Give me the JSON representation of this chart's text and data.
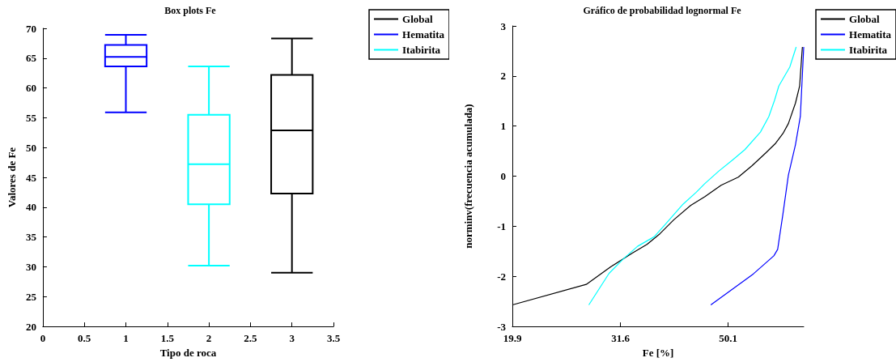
{
  "chart_data": [
    {
      "type": "box",
      "title": "Box plots Fe",
      "xlabel": "Tipo de roca",
      "ylabel": "Valores de Fe",
      "xlim": [
        0,
        3.5
      ],
      "xticks": [
        0,
        0.5,
        1,
        1.5,
        2,
        2.5,
        3,
        3.5
      ],
      "ylim": [
        20,
        70
      ],
      "yticks": [
        20,
        25,
        30,
        35,
        40,
        45,
        50,
        55,
        60,
        65,
        70
      ],
      "legend": "top right",
      "grid": false,
      "series": [
        {
          "name": "Global",
          "color": "#000000",
          "x": [
            3
          ],
          "boxes": [
            {
              "low": 29.0,
              "q1": 42.3,
              "median": 52.9,
              "q3": 62.2,
              "high": 68.3
            }
          ]
        },
        {
          "name": "Hematita",
          "color": "#0000ff",
          "x": [
            1
          ],
          "boxes": [
            {
              "low": 55.9,
              "q1": 63.6,
              "median": 65.2,
              "q3": 67.2,
              "high": 68.9
            }
          ]
        },
        {
          "name": "Itabirita",
          "color": "#00ffff",
          "x": [
            2
          ],
          "boxes": [
            {
              "low": 30.2,
              "q1": 40.5,
              "median": 47.2,
              "q3": 55.5,
              "high": 63.6
            }
          ]
        }
      ]
    },
    {
      "type": "line",
      "title": "Gráfico de probabilidad lognormal Fe",
      "xlabel": "Fe [%]",
      "ylabel": "norminv(frecuencia acumulada)",
      "log": "x",
      "xlim": [
        19.9,
        69.2
      ],
      "xticks": [
        19.9,
        31.6,
        50.1
      ],
      "ylim": [
        -3,
        3
      ],
      "yticks": [
        -3,
        -2,
        -1,
        0,
        1,
        2,
        3
      ],
      "legend": "top right",
      "grid": false,
      "marker": "none",
      "line_style": "solid",
      "series": [
        {
          "name": "Global",
          "color": "#000000",
          "x": [
            19.9,
            27.3,
            30.3,
            33.2,
            35.4,
            37.4,
            39.7,
            42.7,
            45.3,
            48.6,
            52.3,
            55.5,
            58.9,
            61.4,
            63.3,
            64.8,
            66.8,
            68.0,
            68.8
          ],
          "values": [
            -2.57,
            -2.16,
            -1.81,
            -1.54,
            -1.36,
            -1.15,
            -0.87,
            -0.58,
            -0.41,
            -0.18,
            -0.02,
            0.21,
            0.47,
            0.66,
            0.85,
            1.05,
            1.46,
            1.8,
            2.58
          ]
        },
        {
          "name": "Hematita",
          "color": "#0000ff",
          "x": [
            46.5,
            55.8,
            60.9,
            61.9,
            63.3,
            64.8,
            66.8,
            68.2,
            69.2
          ],
          "values": [
            -2.57,
            -1.95,
            -1.59,
            -1.46,
            -0.76,
            0.02,
            0.63,
            1.19,
            2.58
          ]
        },
        {
          "name": "Itabirita",
          "color": "#00ffff",
          "x": [
            27.6,
            30.1,
            32.0,
            34.0,
            36.5,
            38.3,
            41.2,
            43.7,
            45.3,
            48.1,
            51.0,
            53.8,
            57.5,
            59.6,
            61.1,
            62.2,
            65.2,
            67.0
          ],
          "values": [
            -2.57,
            -1.94,
            -1.65,
            -1.4,
            -1.21,
            -0.96,
            -0.57,
            -0.32,
            -0.15,
            0.1,
            0.32,
            0.53,
            0.88,
            1.19,
            1.52,
            1.8,
            2.18,
            2.58
          ]
        }
      ]
    }
  ]
}
